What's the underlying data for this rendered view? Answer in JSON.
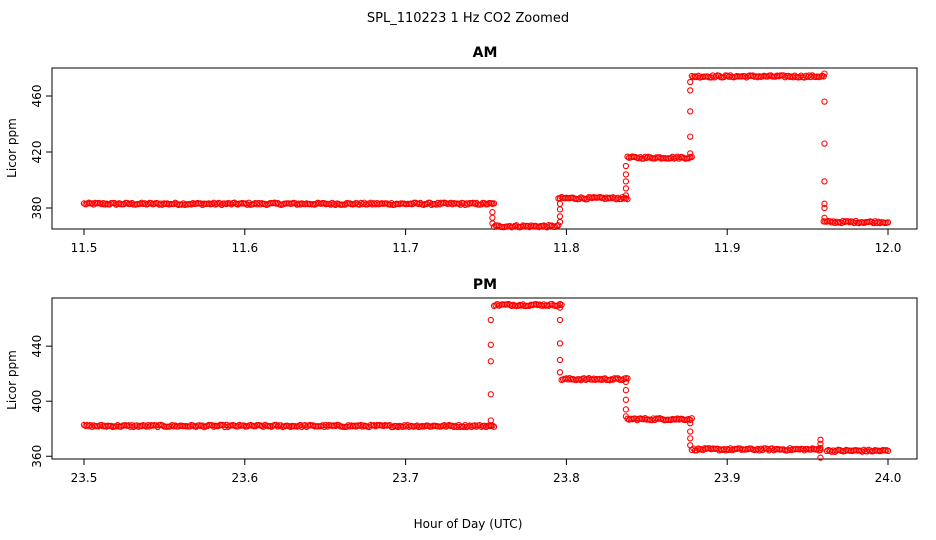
{
  "figure": {
    "title": "SPL_110223  1 Hz CO2 Zoomed",
    "xlabel": "Hour of Day (UTC)"
  },
  "colors": {
    "points": "#ff0000",
    "axis": "#000000"
  },
  "chart_data": [
    {
      "type": "scatter",
      "title": "AM",
      "xlabel": "",
      "ylabel": "Licor ppm",
      "xlim": [
        11.5,
        12.0
      ],
      "ylim": [
        365,
        480
      ],
      "xticks": [
        "11.5",
        "11.6",
        "11.7",
        "11.8",
        "11.9",
        "12.0"
      ],
      "yticks": [
        "380",
        "420",
        "460"
      ],
      "grid": false,
      "legend": "none",
      "segments": [
        {
          "x": [
            11.5,
            11.755
          ],
          "y": 383
        },
        {
          "x": [
            11.755,
            11.795
          ],
          "y": 367
        },
        {
          "x": [
            11.795,
            11.838
          ],
          "y": 387
        },
        {
          "x": [
            11.838,
            11.878
          ],
          "y": 416
        },
        {
          "x": [
            11.878,
            11.96
          ],
          "y": 474
        },
        {
          "x": [
            11.96,
            12.0
          ],
          "y": 370
        }
      ],
      "transitions": [
        {
          "x": 11.754,
          "y": [
            383,
            377,
            373,
            369
          ]
        },
        {
          "x": 11.796,
          "y": [
            370,
            374,
            379,
            383
          ]
        },
        {
          "x": 11.837,
          "y": [
            389,
            394,
            399,
            404,
            410
          ]
        },
        {
          "x": 11.877,
          "y": [
            419,
            431,
            449,
            464,
            470
          ]
        },
        {
          "x": 11.9605,
          "y": [
            476,
            456,
            426,
            399,
            383,
            380,
            373
          ]
        }
      ]
    },
    {
      "type": "scatter",
      "title": "PM",
      "xlabel": "",
      "ylabel": "Licor ppm",
      "xlim": [
        23.5,
        24.0
      ],
      "ylim": [
        358,
        475
      ],
      "xticks": [
        "23.5",
        "23.6",
        "23.7",
        "23.8",
        "23.9",
        "24.0"
      ],
      "yticks": [
        "360",
        "400",
        "440"
      ],
      "grid": false,
      "legend": "none",
      "segments": [
        {
          "x": [
            23.5,
            23.755
          ],
          "y": 382
        },
        {
          "x": [
            23.755,
            23.797
          ],
          "y": 470
        },
        {
          "x": [
            23.797,
            23.838
          ],
          "y": 416
        },
        {
          "x": [
            23.838,
            23.878
          ],
          "y": 387
        },
        {
          "x": [
            23.878,
            23.958
          ],
          "y": 365
        },
        {
          "x": [
            23.962,
            24.0
          ],
          "y": 364
        }
      ],
      "transitions": [
        {
          "x": 23.753,
          "y": [
            382,
            386,
            405,
            429,
            441,
            459
          ]
        },
        {
          "x": 23.796,
          "y": [
            468,
            459,
            442,
            430,
            421
          ]
        },
        {
          "x": 23.837,
          "y": [
            414,
            408,
            401,
            394,
            389
          ]
        },
        {
          "x": 23.877,
          "y": [
            384,
            378,
            373,
            368
          ]
        },
        {
          "x": 23.958,
          "y": [
            359,
            366,
            369,
            372
          ]
        }
      ]
    }
  ]
}
